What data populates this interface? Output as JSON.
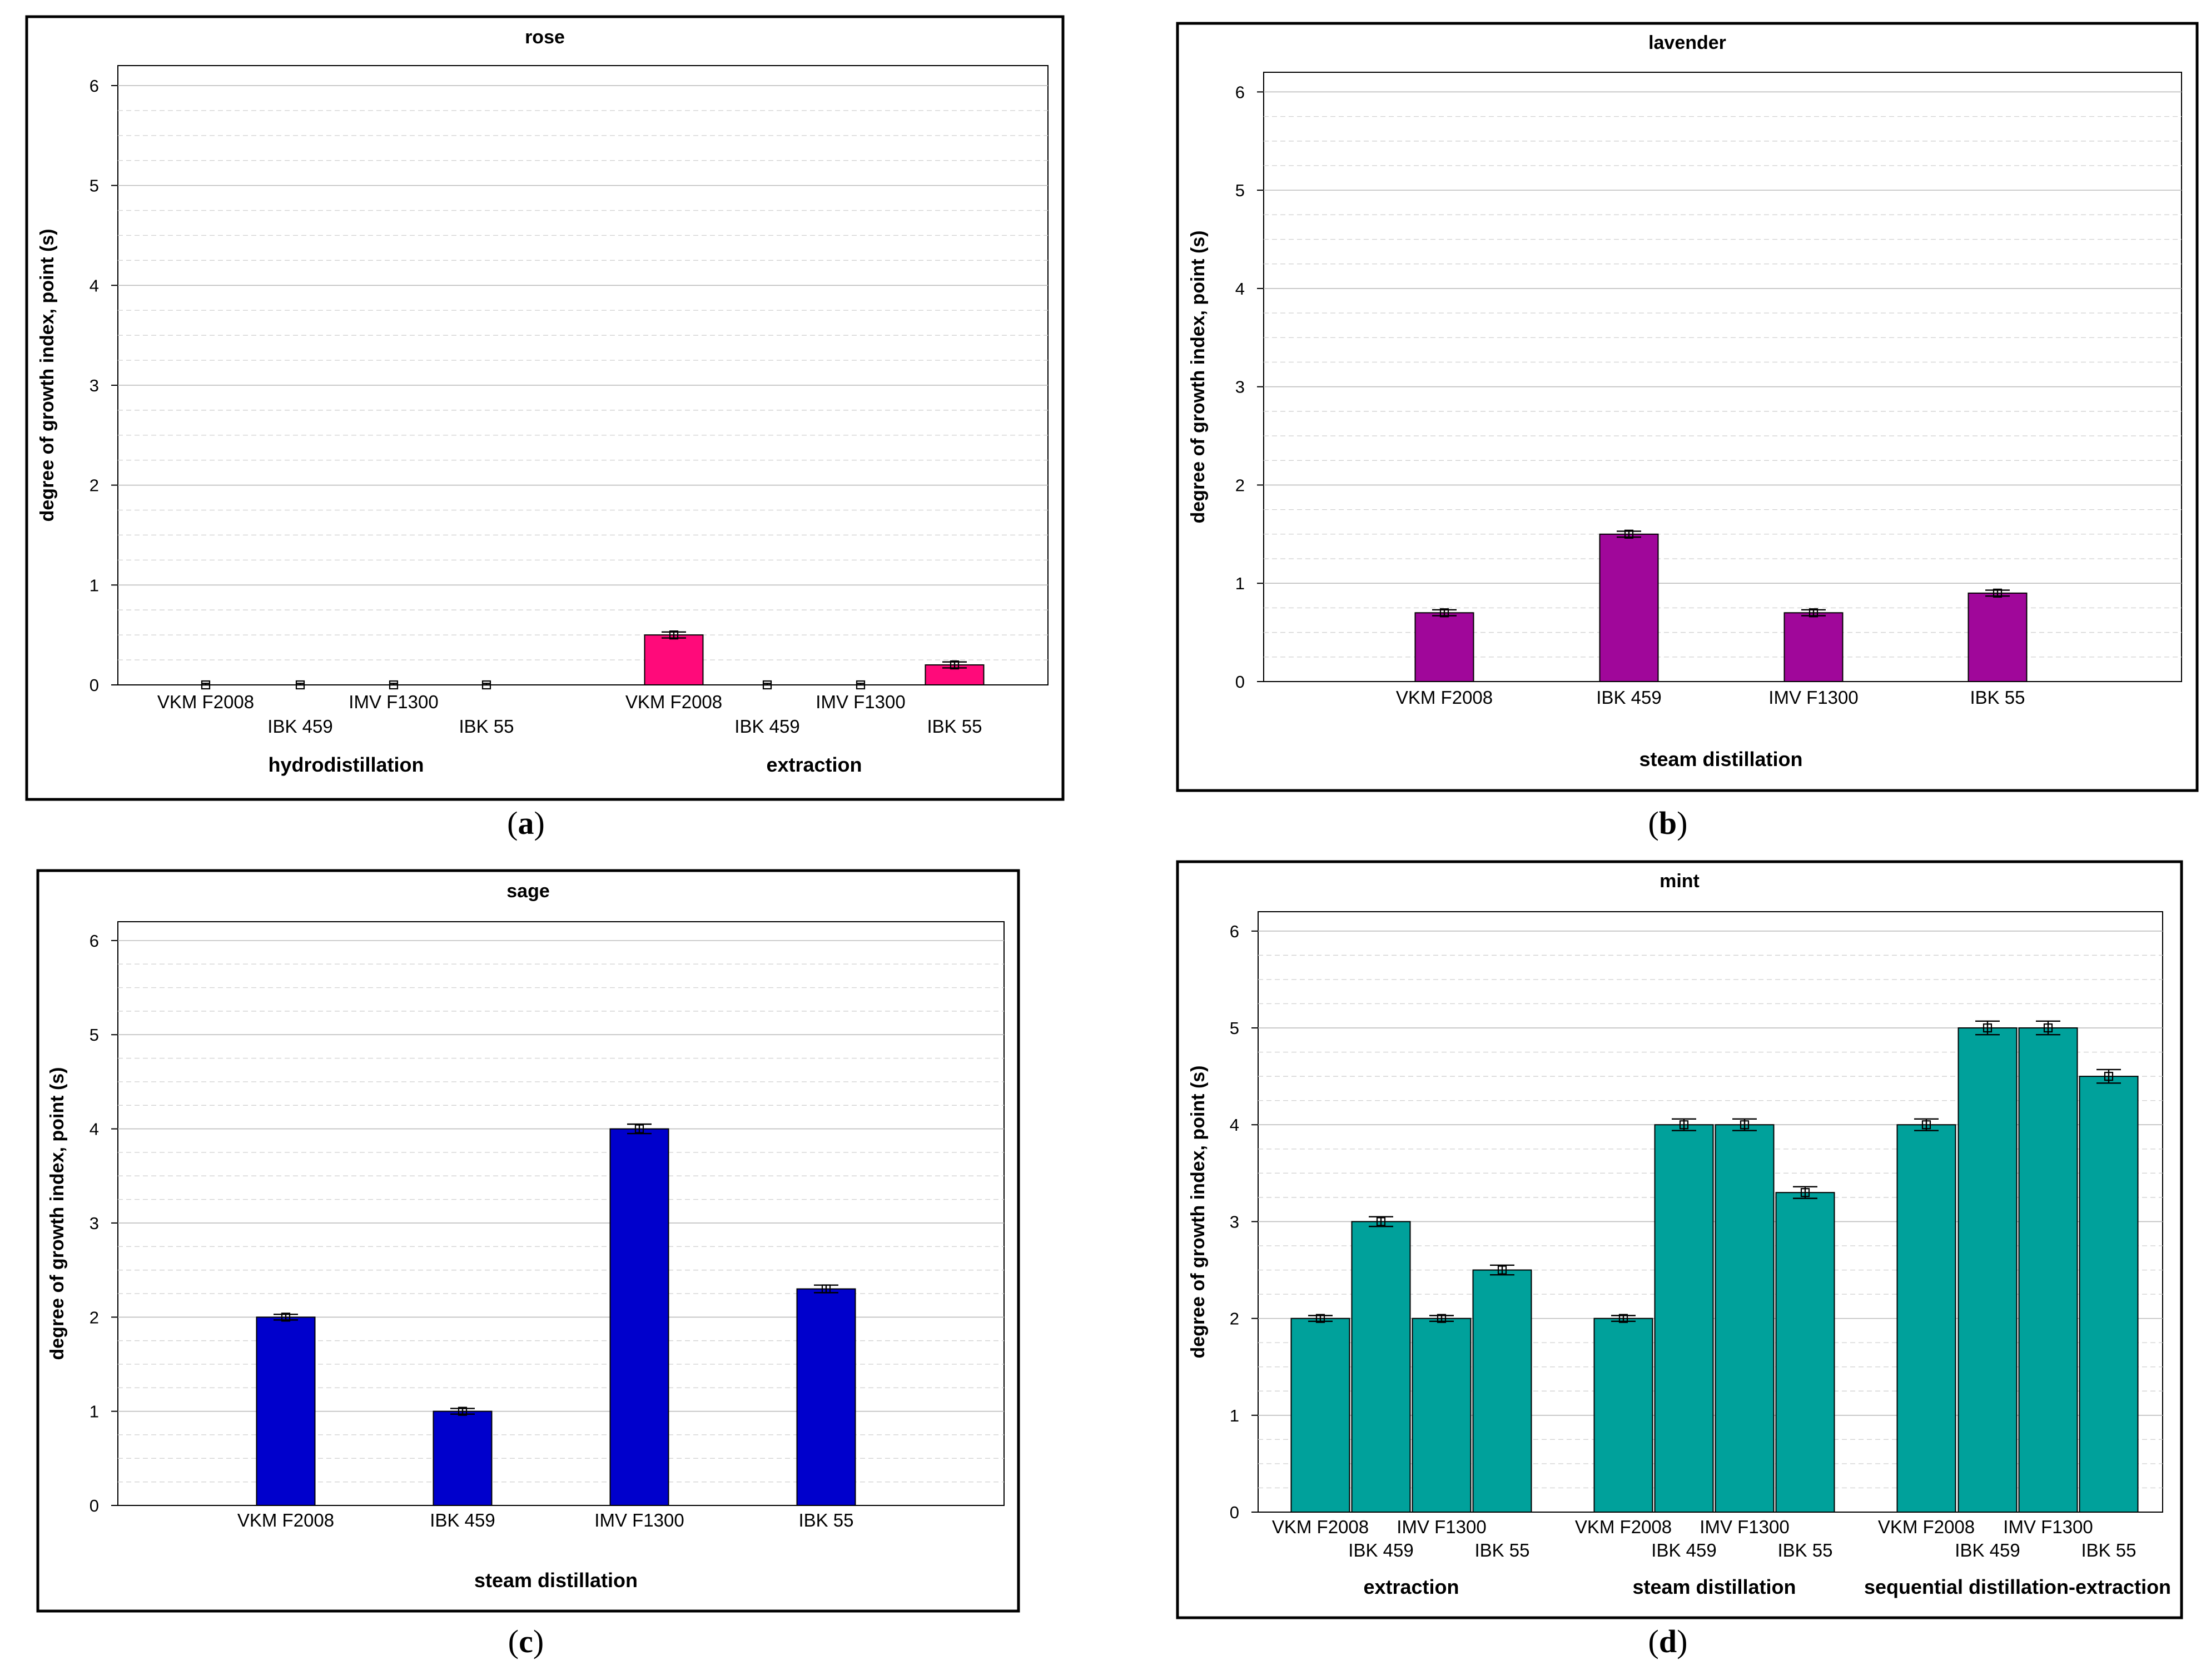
{
  "chart_data": [
    {
      "panel_id": "a",
      "type": "bar",
      "title": "rose",
      "ylabel": "degree of growth index, point (s)",
      "ylim": [
        0,
        6.2
      ],
      "yticks": [
        0,
        1,
        2,
        3,
        4,
        5,
        6
      ],
      "bar_color": "#ff0a7a",
      "caption_letter": "a",
      "groups": [
        {
          "label": "hydrodistillation",
          "categories": [
            "VKM F2008",
            "IBK 459",
            "IMV F1300",
            "IBK 55"
          ],
          "values": [
            0,
            0,
            0,
            0
          ],
          "errors": [
            0,
            0,
            0,
            0
          ]
        },
        {
          "label": "extraction",
          "categories": [
            "VKM F2008",
            "IBK 459",
            "IMV F1300",
            "IBK 55"
          ],
          "values": [
            0.5,
            0,
            0,
            0.2
          ],
          "errors": [
            0.03,
            0,
            0,
            0.03
          ]
        }
      ]
    },
    {
      "panel_id": "b",
      "type": "bar",
      "title": "lavender",
      "ylabel": "degree of growth index, point (s)",
      "ylim": [
        0,
        6.2
      ],
      "yticks": [
        0,
        1,
        2,
        3,
        4,
        5,
        6
      ],
      "bar_color": "#a0079a",
      "caption_letter": "b",
      "groups": [
        {
          "label": "steam distillation",
          "categories": [
            "VKM F2008",
            "IBK 459",
            "IMV F1300",
            "IBK 55"
          ],
          "values": [
            0.7,
            1.5,
            0.7,
            0.9
          ],
          "errors": [
            0.03,
            0.03,
            0.03,
            0.03
          ]
        }
      ]
    },
    {
      "panel_id": "c",
      "type": "bar",
      "title": "sage",
      "ylabel": "degree of growth index, point (s)",
      "ylim": [
        0,
        6.2
      ],
      "yticks": [
        0,
        1,
        2,
        3,
        4,
        5,
        6
      ],
      "bar_color": "#0000cc",
      "caption_letter": "c",
      "groups": [
        {
          "label": "steam distillation",
          "categories": [
            "VKM F2008",
            "IBK 459",
            "IMV F1300",
            "IBK 55"
          ],
          "values": [
            2.0,
            1.0,
            4.0,
            2.3
          ],
          "errors": [
            0.03,
            0.03,
            0.05,
            0.04
          ]
        }
      ]
    },
    {
      "panel_id": "d",
      "type": "bar",
      "title": "mint",
      "ylabel": "degree of growth index, point (s)",
      "ylim": [
        0,
        6.2
      ],
      "yticks": [
        0,
        1,
        2,
        3,
        4,
        5,
        6
      ],
      "bar_color": "#00a19b",
      "caption_letter": "d",
      "groups": [
        {
          "label": "extraction",
          "categories": [
            "VKM F2008",
            "IBK 459",
            "IMV F1300",
            "IBK 55"
          ],
          "values": [
            2.0,
            3.0,
            2.0,
            2.5
          ],
          "errors": [
            0.03,
            0.05,
            0.03,
            0.05
          ]
        },
        {
          "label": "steam distillation",
          "categories": [
            "VKM F2008",
            "IBK 459",
            "IMV F1300",
            "IBK 55"
          ],
          "values": [
            2.0,
            4.0,
            4.0,
            3.3
          ],
          "errors": [
            0.03,
            0.06,
            0.06,
            0.06
          ]
        },
        {
          "label": "sequential distillation-extraction",
          "categories": [
            "VKM F2008",
            "IBK 459",
            "IMV F1300",
            "IBK 55"
          ],
          "values": [
            4.0,
            5.0,
            5.0,
            4.5
          ],
          "errors": [
            0.06,
            0.07,
            0.07,
            0.07
          ]
        }
      ]
    }
  ]
}
